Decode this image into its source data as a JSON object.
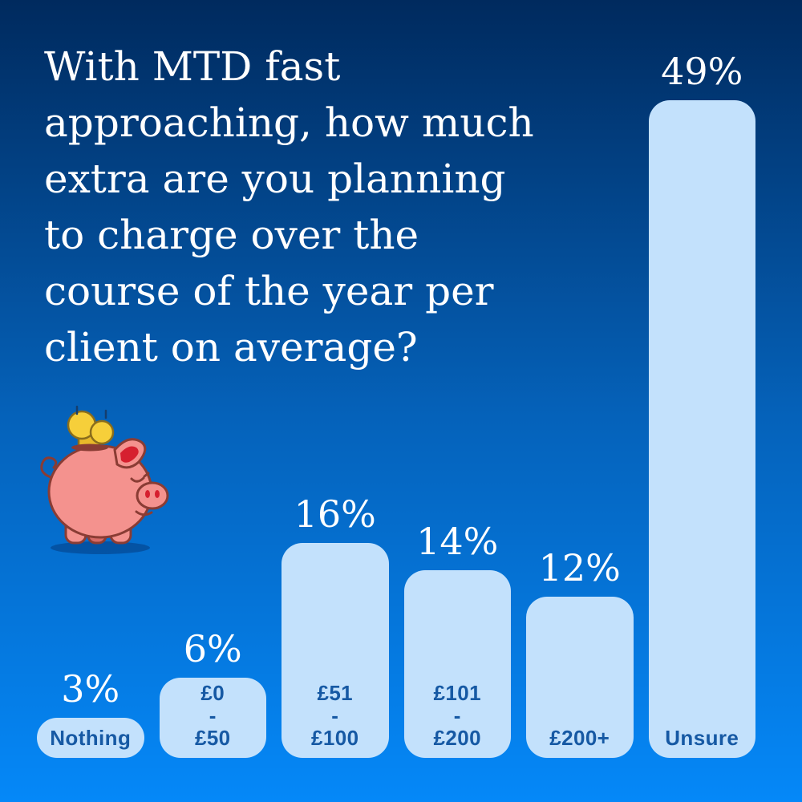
{
  "header": {
    "title_full": "With MTD fast approaching, how much extra are you planning to charge over the course of the year per client on average?",
    "title_lines": [
      "With MTD fast",
      "approaching, how much",
      "extra are you planning",
      "to charge over the",
      "course of the year per",
      "client on average?"
    ],
    "title_color": "#ffffff"
  },
  "illustration": {
    "name": "piggy-bank-with-falling-coins",
    "body_color": "#f4928e",
    "outline_color": "#8a3c34",
    "inner_ear_color": "#d6202f",
    "back_leg_color": "#d66a66",
    "coin_color": "#f6cf3a",
    "coin_edge_color": "#e8b92a",
    "coin_outline_color": "#8a6d1c",
    "motion_line_color": "#153e6e"
  },
  "chart_data": {
    "type": "bar",
    "title": "With MTD fast approaching, how much extra are you planning to charge over the course of the year per client on average?",
    "xlabel": "",
    "ylabel": "",
    "ylim": [
      0,
      49
    ],
    "grid": false,
    "legend": false,
    "categories": [
      "Nothing",
      "£0 - £50",
      "£51 - £100",
      "£101 - £200",
      "£200+",
      "Unsure"
    ],
    "values": [
      3,
      6,
      16,
      14,
      12,
      49
    ],
    "value_labels": [
      "3%",
      "6%",
      "16%",
      "14%",
      "12%",
      "49%"
    ],
    "bars": [
      {
        "value": 3,
        "value_label": "3%",
        "category_lines": [
          "Nothing"
        ]
      },
      {
        "value": 6,
        "value_label": "6%",
        "category_lines": [
          "£0",
          "-",
          "£50"
        ]
      },
      {
        "value": 16,
        "value_label": "16%",
        "category_lines": [
          "£51",
          "-",
          "£100"
        ]
      },
      {
        "value": 14,
        "value_label": "14%",
        "category_lines": [
          "£101",
          "-",
          "£200"
        ]
      },
      {
        "value": 12,
        "value_label": "12%",
        "category_lines": [
          "£200+"
        ]
      },
      {
        "value": 49,
        "value_label": "49%",
        "category_lines": [
          "Unsure"
        ]
      }
    ],
    "bar_color": "#c3e1fc",
    "category_label_color": "#1659a4",
    "value_label_color": "#ffffff",
    "background_gradient": [
      "#002a5e",
      "#0562ba",
      "#0588f8"
    ]
  }
}
